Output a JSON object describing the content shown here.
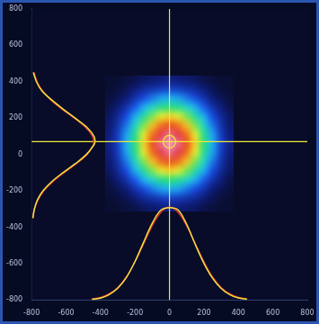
{
  "chart_data": {
    "type": "heatmap",
    "xlim": [
      -800,
      800
    ],
    "ylim": [
      -800,
      800
    ],
    "xticks": [
      -800,
      -600,
      -400,
      -200,
      0,
      200,
      400,
      600,
      800
    ],
    "yticks": [
      -800,
      -600,
      -400,
      -200,
      0,
      200,
      400,
      600,
      800
    ],
    "grid": false,
    "heatmap": {
      "x": [
        -350,
        -300,
        -250,
        -200,
        -150,
        -100,
        -50,
        0,
        50,
        100,
        150,
        200,
        250,
        300,
        350
      ],
      "y": [
        -290,
        -240,
        -190,
        -140,
        -90,
        -40,
        10,
        60,
        110,
        160,
        210,
        260,
        310,
        360,
        410
      ],
      "zlim": [
        0,
        100
      ],
      "cells": [
        [
          1,
          1,
          2,
          3,
          5,
          6,
          7,
          8,
          7,
          6,
          5,
          3,
          2,
          1,
          1
        ],
        [
          1,
          2,
          4,
          7,
          10,
          12,
          14,
          15,
          14,
          12,
          10,
          7,
          4,
          2,
          1
        ],
        [
          2,
          4,
          7,
          12,
          17,
          22,
          26,
          27,
          26,
          22,
          17,
          12,
          7,
          4,
          2
        ],
        [
          3,
          7,
          12,
          19,
          27,
          35,
          41,
          43,
          41,
          35,
          27,
          19,
          12,
          7,
          3
        ],
        [
          5,
          10,
          17,
          27,
          39,
          51,
          59,
          63,
          59,
          51,
          39,
          27,
          17,
          10,
          5
        ],
        [
          6,
          12,
          22,
          35,
          51,
          66,
          77,
          81,
          77,
          66,
          51,
          35,
          22,
          12,
          6
        ],
        [
          7,
          14,
          26,
          41,
          59,
          77,
          90,
          95,
          90,
          77,
          59,
          41,
          26,
          14,
          7
        ],
        [
          8,
          15,
          27,
          43,
          63,
          81,
          95,
          100,
          95,
          81,
          63,
          43,
          27,
          15,
          8
        ],
        [
          7,
          14,
          26,
          41,
          59,
          77,
          90,
          95,
          90,
          77,
          59,
          41,
          26,
          14,
          7
        ],
        [
          6,
          12,
          22,
          35,
          51,
          66,
          77,
          81,
          77,
          66,
          51,
          35,
          22,
          12,
          6
        ],
        [
          5,
          10,
          17,
          27,
          39,
          51,
          59,
          63,
          59,
          51,
          39,
          27,
          17,
          10,
          5
        ],
        [
          3,
          7,
          12,
          19,
          27,
          35,
          41,
          43,
          41,
          35,
          27,
          19,
          12,
          7,
          3
        ],
        [
          2,
          4,
          7,
          12,
          17,
          22,
          26,
          27,
          26,
          22,
          17,
          12,
          7,
          4,
          2
        ],
        [
          1,
          2,
          4,
          7,
          10,
          12,
          14,
          15,
          14,
          12,
          10,
          7,
          4,
          2,
          1
        ],
        [
          1,
          1,
          2,
          3,
          5,
          6,
          7,
          8,
          7,
          6,
          5,
          3,
          2,
          1,
          1
        ]
      ]
    },
    "crosshair": {
      "x": 0,
      "y": 70
    },
    "series": [
      {
        "type": "line",
        "color": "#f0e040",
        "x": [
          -790,
          -772,
          -741,
          -684,
          -618,
          -548,
          -480,
          -438,
          -432,
          -440,
          -482,
          -545,
          -618,
          -684,
          -734,
          -766,
          -784,
          -792
        ],
        "y": [
          450,
          400,
          350,
          300,
          250,
          200,
          150,
          100,
          70,
          50,
          0,
          -50,
          -100,
          -150,
          -200,
          -250,
          -300,
          -350
        ]
      },
      {
        "type": "line",
        "color": "#e03030",
        "x": [
          -786,
          -768,
          -737,
          -689,
          -625,
          -553,
          -488,
          -447,
          -440,
          -443,
          -477,
          -539,
          -611,
          -677,
          -729,
          -763,
          -783,
          -794
        ],
        "y": [
          450,
          400,
          350,
          300,
          250,
          200,
          150,
          100,
          70,
          50,
          0,
          -50,
          -100,
          -150,
          -200,
          -250,
          -300,
          -350
        ]
      },
      {
        "type": "line",
        "color": "#f0e040",
        "x": [
          -450,
          -400,
          -350,
          -300,
          -250,
          -200,
          -150,
          -100,
          -50,
          0,
          50,
          100,
          150,
          200,
          250,
          300,
          350,
          400,
          450
        ],
        "y": [
          -796,
          -789,
          -770,
          -735,
          -676,
          -588,
          -482,
          -378,
          -306,
          -292,
          -305,
          -384,
          -495,
          -598,
          -680,
          -736,
          -770,
          -788,
          -796
        ]
      },
      {
        "type": "line",
        "color": "#e03030",
        "x": [
          -450,
          -400,
          -350,
          -300,
          -250,
          -200,
          -150,
          -100,
          -50,
          0,
          50,
          100,
          150,
          200,
          250,
          300,
          350,
          400,
          450
        ],
        "y": [
          -794,
          -786,
          -766,
          -731,
          -673,
          -590,
          -491,
          -392,
          -318,
          -290,
          -318,
          -392,
          -491,
          -590,
          -673,
          -731,
          -766,
          -786,
          -794
        ]
      }
    ]
  }
}
